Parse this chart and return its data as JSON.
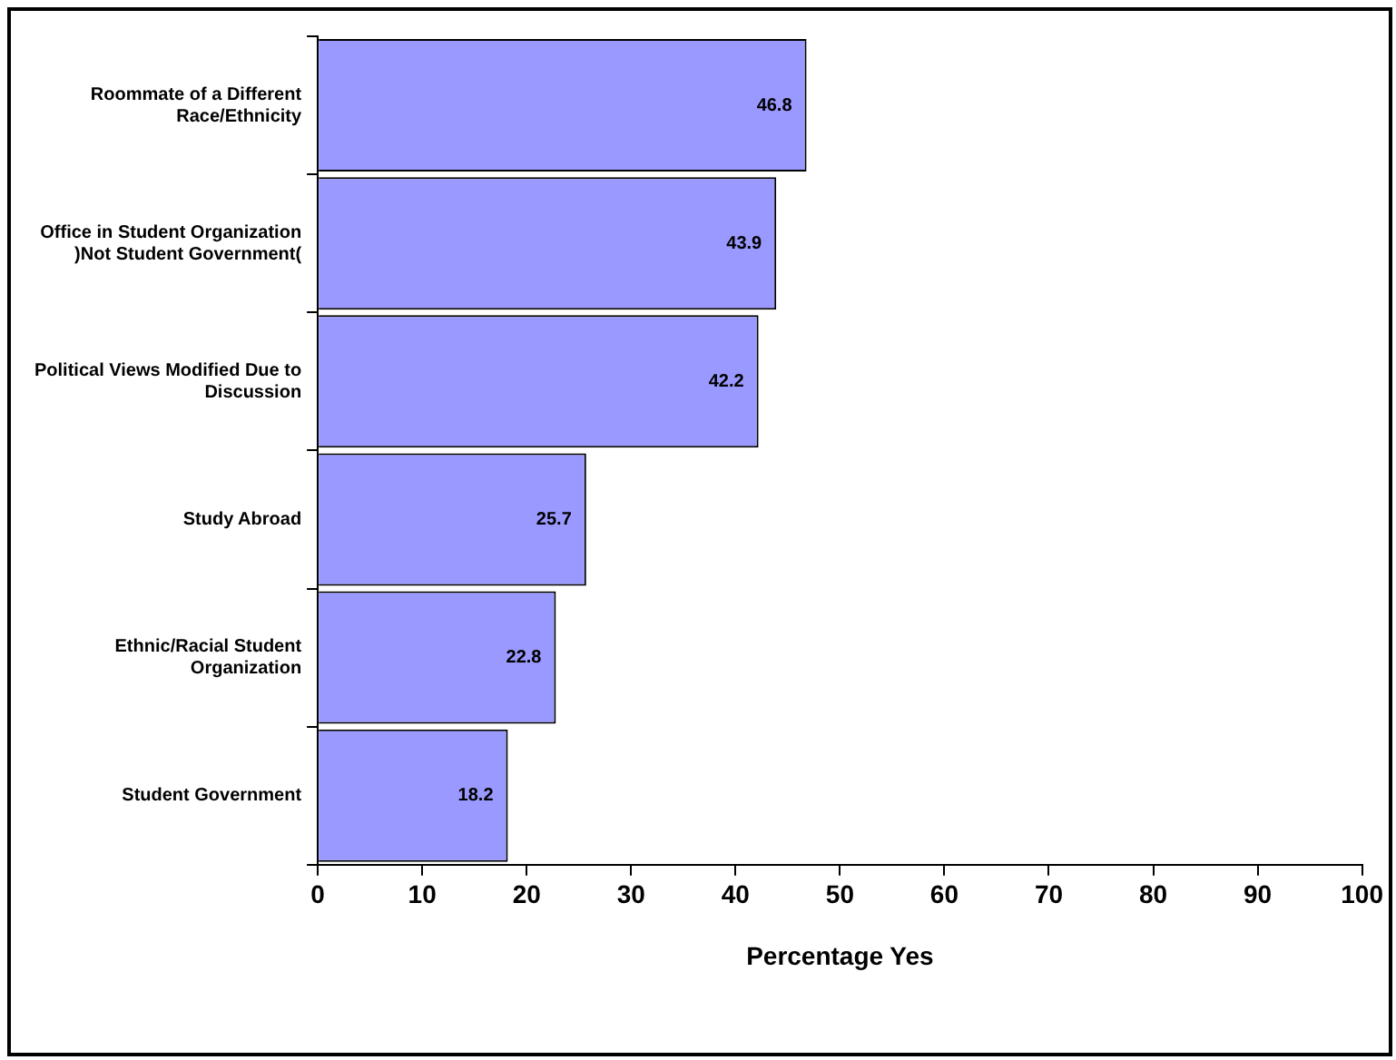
{
  "chart_data": {
    "type": "bar",
    "orientation": "horizontal",
    "xlabel": "Percentage Yes",
    "categories": [
      "Roommate of a Different\nRace/Ethnicity",
      "Office in Student Organization\n)Not Student Government(",
      "Political Views Modified Due to\nDiscussion",
      "Study Abroad",
      "Ethnic/Racial Student\nOrganization",
      "Student Government"
    ],
    "values": [
      46.8,
      43.9,
      42.2,
      25.7,
      22.8,
      18.2
    ],
    "color": "#9999ff",
    "xlim": [
      0,
      100
    ],
    "xticks": [
      0,
      10,
      20,
      30,
      40,
      50,
      60,
      70,
      80,
      90,
      100
    ],
    "grid": false,
    "legend": false,
    "data_labels": true
  }
}
